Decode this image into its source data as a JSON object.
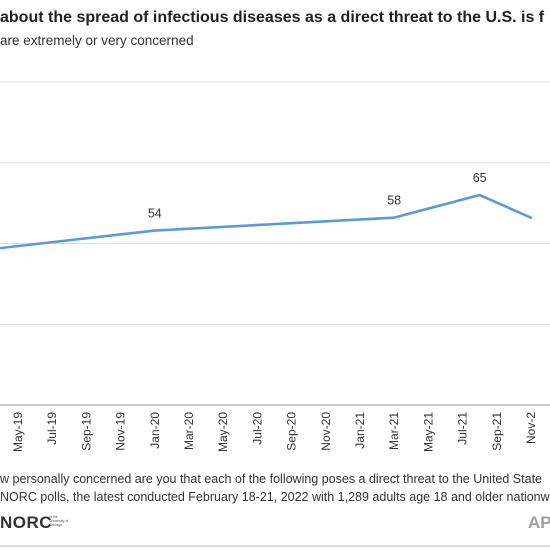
{
  "header": {
    "title": "about the spread of infectious diseases as a direct threat to the U.S. is f",
    "subtitle": "are extremely or very concerned"
  },
  "footer": {
    "note_line1": "w personally concerned are you that each of the following poses a direct threat to the United State",
    "note_line2": "NORC polls, the latest conducted February 18-21, 2022 with 1,289 adults age 18 and older nationw",
    "logo_norc": "NORC",
    "logo_norc_small": "at the University of Chicago",
    "logo_ap": "AP"
  },
  "colors": {
    "line": "#5b9bd5",
    "grid": "#dddddd",
    "axis": "#aaaaaa",
    "text": "#333333"
  },
  "chart_data": {
    "type": "line",
    "title": "about the spread of infectious diseases as a direct threat to the U.S. is f",
    "subtitle": "are extremely or very concerned",
    "x_ticks": [
      "May-19",
      "Jul-19",
      "Sep-19",
      "Nov-19",
      "Jan-20",
      "Mar-20",
      "May-20",
      "Jul-20",
      "Sep-20",
      "Nov-20",
      "Jan-21",
      "Mar-21",
      "May-21",
      "Jul-21",
      "Sep-21",
      "Nov-2"
    ],
    "series": [
      {
        "name": "",
        "points": [
          {
            "x": "2019-03",
            "y": 48
          },
          {
            "x": "2020-01",
            "y": 54
          },
          {
            "x": "2021-03",
            "y": 58
          },
          {
            "x": "2021-08",
            "y": 65
          },
          {
            "x": "2021-11",
            "y": 58
          }
        ]
      }
    ],
    "data_labels": [
      {
        "x": "2020-01",
        "text": "54"
      },
      {
        "x": "2021-03",
        "text": "58"
      },
      {
        "x": "2021-08",
        "text": "65"
      }
    ],
    "ylim": [
      0,
      100
    ],
    "y_gridlines": [
      0,
      25,
      50,
      75,
      100
    ],
    "grid": true,
    "legend": "none"
  }
}
